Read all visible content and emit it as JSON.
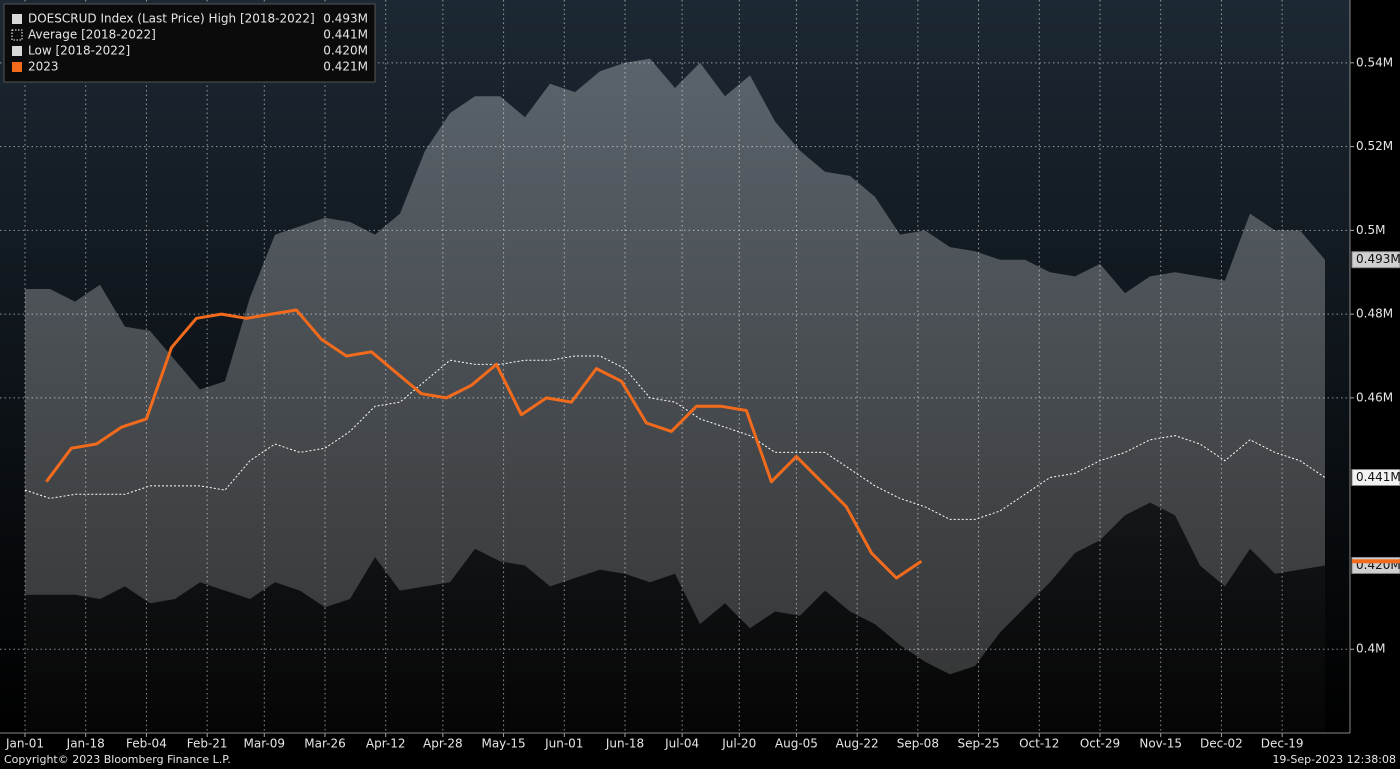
{
  "chart_data": {
    "type": "band",
    "xlim": [
      -7,
      371
    ],
    "ylim": [
      0.38,
      0.555
    ],
    "yticks": [
      {
        "value": 0.4,
        "label": "0.4M"
      },
      {
        "value": 0.46,
        "label": "0.46M"
      },
      {
        "value": 0.48,
        "label": "0.48M"
      },
      {
        "value": 0.5,
        "label": "0.5M"
      },
      {
        "value": 0.52,
        "label": "0.52M"
      },
      {
        "value": 0.54,
        "label": "0.54M"
      }
    ],
    "xticks": [
      {
        "value": 0,
        "label": "Jan-01"
      },
      {
        "value": 17,
        "label": "Jan-18"
      },
      {
        "value": 34,
        "label": "Feb-04"
      },
      {
        "value": 51,
        "label": "Feb-21"
      },
      {
        "value": 67,
        "label": "Mar-09"
      },
      {
        "value": 84,
        "label": "Mar-26"
      },
      {
        "value": 101,
        "label": "Apr-12"
      },
      {
        "value": 117,
        "label": "Apr-28"
      },
      {
        "value": 134,
        "label": "May-15"
      },
      {
        "value": 151,
        "label": "Jun-01"
      },
      {
        "value": 168,
        "label": "Jun-18"
      },
      {
        "value": 184,
        "label": "Jul-04"
      },
      {
        "value": 200,
        "label": "Jul-20"
      },
      {
        "value": 216,
        "label": "Aug-05"
      },
      {
        "value": 233,
        "label": "Aug-22"
      },
      {
        "value": 250,
        "label": "Sep-08"
      },
      {
        "value": 267,
        "label": "Sep-25"
      },
      {
        "value": 284,
        "label": "Oct-12"
      },
      {
        "value": 301,
        "label": "Oct-29"
      },
      {
        "value": 318,
        "label": "Nov-15"
      },
      {
        "value": 335,
        "label": "Dec-02"
      },
      {
        "value": 352,
        "label": "Dec-19"
      }
    ],
    "grid": true,
    "legend": "top-left",
    "series": [
      {
        "name": "DOESCRUD Index (Last Price) High [2018-2022]",
        "role": "high",
        "color": "#d9d9d9",
        "last_label": "0.493M",
        "x": [
          0,
          7,
          14,
          21,
          28,
          35,
          42,
          49,
          56,
          63,
          70,
          77,
          84,
          91,
          98,
          105,
          112,
          119,
          126,
          133,
          140,
          147,
          154,
          161,
          168,
          175,
          182,
          189,
          196,
          203,
          210,
          217,
          224,
          231,
          238,
          245,
          252,
          259,
          266,
          273,
          280,
          287,
          294,
          301,
          308,
          315,
          322,
          329,
          336,
          343,
          350,
          357,
          364
        ],
        "values": [
          0.486,
          0.486,
          0.483,
          0.487,
          0.477,
          0.476,
          0.469,
          0.462,
          0.464,
          0.484,
          0.499,
          0.501,
          0.503,
          0.502,
          0.499,
          0.504,
          0.519,
          0.528,
          0.532,
          0.532,
          0.527,
          0.535,
          0.533,
          0.538,
          0.54,
          0.541,
          0.534,
          0.54,
          0.532,
          0.537,
          0.526,
          0.519,
          0.514,
          0.513,
          0.508,
          0.499,
          0.5,
          0.496,
          0.495,
          0.493,
          0.493,
          0.49,
          0.489,
          0.492,
          0.485,
          0.489,
          0.49,
          0.489,
          0.488,
          0.504,
          0.5,
          0.5,
          0.493
        ]
      },
      {
        "name": "Average  [2018-2022]",
        "role": "average",
        "color": "#ffffff",
        "last_label": "0.441M",
        "x": [
          0,
          7,
          14,
          21,
          28,
          35,
          42,
          49,
          56,
          63,
          70,
          77,
          84,
          91,
          98,
          105,
          112,
          119,
          126,
          133,
          140,
          147,
          154,
          161,
          168,
          175,
          182,
          189,
          196,
          203,
          210,
          217,
          224,
          231,
          238,
          245,
          252,
          259,
          266,
          273,
          280,
          287,
          294,
          301,
          308,
          315,
          322,
          329,
          336,
          343,
          350,
          357,
          364
        ],
        "values": [
          0.438,
          0.436,
          0.437,
          0.437,
          0.437,
          0.439,
          0.439,
          0.439,
          0.438,
          0.445,
          0.449,
          0.447,
          0.448,
          0.452,
          0.458,
          0.459,
          0.464,
          0.469,
          0.468,
          0.468,
          0.469,
          0.469,
          0.47,
          0.47,
          0.467,
          0.46,
          0.459,
          0.455,
          0.453,
          0.451,
          0.447,
          0.447,
          0.447,
          0.443,
          0.439,
          0.436,
          0.434,
          0.431,
          0.431,
          0.433,
          0.437,
          0.441,
          0.442,
          0.445,
          0.447,
          0.45,
          0.451,
          0.449,
          0.445,
          0.45,
          0.447,
          0.445,
          0.441
        ]
      },
      {
        "name": "Low  [2018-2022]",
        "role": "low",
        "color": "#d9d9d9",
        "last_label": "0.420M",
        "x": [
          0,
          7,
          14,
          21,
          28,
          35,
          42,
          49,
          56,
          63,
          70,
          77,
          84,
          91,
          98,
          105,
          112,
          119,
          126,
          133,
          140,
          147,
          154,
          161,
          168,
          175,
          182,
          189,
          196,
          203,
          210,
          217,
          224,
          231,
          238,
          245,
          252,
          259,
          266,
          273,
          280,
          287,
          294,
          301,
          308,
          315,
          322,
          329,
          336,
          343,
          350,
          357,
          364
        ],
        "values": [
          0.413,
          0.413,
          0.413,
          0.412,
          0.415,
          0.411,
          0.412,
          0.416,
          0.414,
          0.412,
          0.416,
          0.414,
          0.41,
          0.412,
          0.422,
          0.414,
          0.415,
          0.416,
          0.424,
          0.421,
          0.42,
          0.415,
          0.417,
          0.419,
          0.418,
          0.416,
          0.418,
          0.406,
          0.411,
          0.405,
          0.409,
          0.408,
          0.414,
          0.409,
          0.406,
          0.401,
          0.397,
          0.394,
          0.396,
          0.404,
          0.41,
          0.416,
          0.423,
          0.426,
          0.432,
          0.435,
          0.432,
          0.42,
          0.415,
          0.424,
          0.418,
          0.419,
          0.42
        ]
      },
      {
        "name": "2023",
        "role": "current",
        "color": "#f26b1d",
        "last_label": "0.421M",
        "x": [
          6,
          13,
          20,
          27,
          34,
          41,
          48,
          55,
          62,
          69,
          76,
          83,
          90,
          97,
          104,
          111,
          118,
          125,
          132,
          139,
          146,
          153,
          160,
          167,
          174,
          181,
          188,
          195,
          202,
          209,
          216,
          223,
          230,
          237,
          244,
          251
        ],
        "values": [
          0.44,
          0.448,
          0.449,
          0.453,
          0.455,
          0.472,
          0.479,
          0.48,
          0.479,
          0.48,
          0.481,
          0.474,
          0.47,
          0.471,
          0.466,
          0.461,
          0.46,
          0.463,
          0.468,
          0.456,
          0.46,
          0.459,
          0.467,
          0.464,
          0.454,
          0.452,
          0.458,
          0.458,
          0.457,
          0.44,
          0.446,
          0.44,
          0.434,
          0.423,
          0.417,
          0.421
        ]
      }
    ],
    "footer_left": "Copyright© 2023 Bloomberg Finance L.P.",
    "footer_right": "19-Sep-2023 12:38:08"
  }
}
